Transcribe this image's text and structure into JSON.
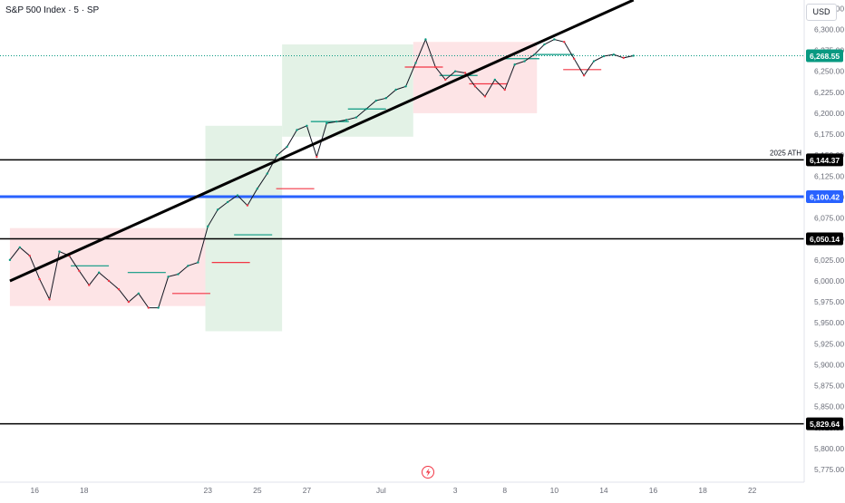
{
  "header": {
    "title": "S&P 500 Index · 5 · SP",
    "currency": "USD"
  },
  "colors": {
    "up": "#089981",
    "down": "#f23645",
    "green_zone": "#e3f2e6",
    "red_zone": "#fde4e6",
    "black_line": "#000000",
    "blue_line": "#2962ff",
    "last_price": "#089981"
  },
  "chart_data": {
    "type": "line",
    "title": "S&P 500 Index · 5 · SP",
    "xlabel": "",
    "ylabel": "",
    "ylim": [
      5760,
      6335
    ],
    "grid": false,
    "x_ticks": [
      {
        "label": "16",
        "x": 16
      },
      {
        "label": "18",
        "x": 18
      },
      {
        "label": "23",
        "x": 23
      },
      {
        "label": "25",
        "x": 25
      },
      {
        "label": "27",
        "x": 27
      },
      {
        "label": "Jul",
        "x": 30
      },
      {
        "label": "3",
        "x": 33
      },
      {
        "label": "8",
        "x": 35
      },
      {
        "label": "10",
        "x": 37
      },
      {
        "label": "14",
        "x": 39
      },
      {
        "label": "16",
        "x": 41
      },
      {
        "label": "18",
        "x": 43
      },
      {
        "label": "22",
        "x": 45
      }
    ],
    "y_ticks": [
      "6,325.00",
      "6,300.00",
      "6,275.00",
      "6,250.00",
      "6,225.00",
      "6,200.00",
      "6,175.00",
      "6,150.00",
      "6,125.00",
      "6,100.00",
      "6,075.00",
      "6,050.00",
      "6,025.00",
      "6,000.00",
      "5,975.00",
      "5,950.00",
      "5,925.00",
      "5,900.00",
      "5,875.00",
      "5,850.00",
      "5,825.00",
      "5,800.00",
      "5,775.00"
    ],
    "y_tick_values": [
      6325,
      6300,
      6275,
      6250,
      6225,
      6200,
      6175,
      6150,
      6125,
      6100,
      6075,
      6050,
      6025,
      6000,
      5975,
      5950,
      5925,
      5900,
      5875,
      5850,
      5825,
      5800,
      5775
    ],
    "series": [
      {
        "values_x": [
          15.0,
          15.4,
          15.8,
          16.2,
          16.6,
          17.0,
          17.4,
          17.8,
          18.2,
          18.6,
          19.0,
          19.4,
          19.8,
          20.2,
          20.6,
          21.0,
          21.4,
          21.8,
          22.2,
          22.6,
          23.0,
          23.4,
          23.8,
          24.2,
          24.6,
          25.0,
          25.4,
          25.8,
          26.2,
          26.6,
          27.0,
          27.4,
          27.8,
          28.2,
          28.6,
          29.0,
          29.4,
          29.8,
          30.2,
          30.6,
          31.0,
          31.4,
          31.8,
          32.2,
          32.6,
          33.0,
          33.4,
          33.8,
          34.2,
          34.6,
          35.0,
          35.4,
          35.8,
          36.2,
          36.6,
          37.0,
          37.4,
          37.8,
          38.2,
          38.6,
          39.0,
          39.4,
          39.8,
          40.2
        ],
        "values_y": [
          6025,
          6040,
          6030,
          6002,
          5978,
          6035,
          6030,
          6012,
          5995,
          6010,
          6000,
          5990,
          5975,
          5985,
          5968,
          5968,
          6005,
          6008,
          6018,
          6022,
          6065,
          6085,
          6094,
          6102,
          6090,
          6110,
          6128,
          6150,
          6160,
          6180,
          6185,
          6148,
          6188,
          6190,
          6192,
          6195,
          6205,
          6215,
          6218,
          6228,
          6232,
          6260,
          6288,
          6255,
          6240,
          6250,
          6248,
          6232,
          6220,
          6240,
          6228,
          6258,
          6262,
          6270,
          6282,
          6288,
          6285,
          6265,
          6245,
          6262,
          6268,
          6270,
          6266,
          6268.55
        ]
      }
    ],
    "horizontal_levels": [
      {
        "price": 6144.37,
        "label": "6,144.37",
        "color": "#000000",
        "note": "2025 ATH"
      },
      {
        "price": 6100.42,
        "label": "6,100.42",
        "color": "#2962ff",
        "note": ""
      },
      {
        "price": 6050.14,
        "label": "6,050.14",
        "color": "#000000",
        "note": ""
      },
      {
        "price": 5829.64,
        "label": "5,829.64",
        "color": "#000000",
        "note": ""
      }
    ],
    "last_price": {
      "price": 6268.55,
      "label": "6,268.55"
    },
    "trendline": {
      "x1": 15.0,
      "y1": 6000,
      "x2": 40.2,
      "y2": 6335
    },
    "zones": [
      {
        "x1": 15.0,
        "x2": 22.9,
        "y1": 6063,
        "y2": 5970,
        "kind": "red"
      },
      {
        "x1": 22.9,
        "x2": 26.0,
        "y1": 6185,
        "y2": 5940,
        "kind": "green"
      },
      {
        "x1": 26.0,
        "x2": 31.3,
        "y1": 6282,
        "y2": 6172,
        "kind": "green"
      },
      {
        "x1": 31.3,
        "x2": 36.3,
        "y1": 6285,
        "y2": 6200,
        "kind": "red"
      }
    ],
    "markers": [
      {
        "x": 17.9,
        "y": 6018,
        "color": "#089981"
      },
      {
        "x": 20.2,
        "y": 6010,
        "color": "#089981"
      },
      {
        "x": 22.0,
        "y": 5985,
        "color": "#f23645"
      },
      {
        "x": 23.6,
        "y": 6022,
        "color": "#f23645"
      },
      {
        "x": 24.5,
        "y": 6055,
        "color": "#089981"
      },
      {
        "x": 26.2,
        "y": 6110,
        "color": "#f23645"
      },
      {
        "x": 27.6,
        "y": 6190,
        "color": "#089981"
      },
      {
        "x": 29.1,
        "y": 6205,
        "color": "#089981"
      },
      {
        "x": 31.4,
        "y": 6255,
        "color": "#f23645"
      },
      {
        "x": 32.8,
        "y": 6245,
        "color": "#089981"
      },
      {
        "x": 34.0,
        "y": 6235,
        "color": "#f23645"
      },
      {
        "x": 35.3,
        "y": 6265,
        "color": "#089981"
      },
      {
        "x": 36.7,
        "y": 6270,
        "color": "#089981"
      },
      {
        "x": 37.8,
        "y": 6252,
        "color": "#f23645"
      }
    ]
  }
}
